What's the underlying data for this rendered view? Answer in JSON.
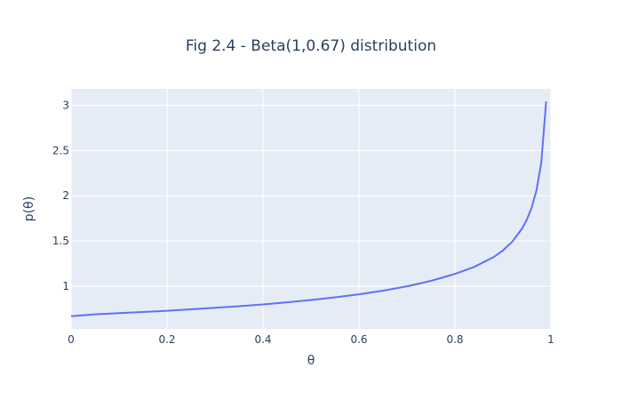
{
  "chart_data": {
    "type": "line",
    "title": "Fig 2.4 - Beta(1,0.67) distribution",
    "xlabel": "θ",
    "ylabel": "p(θ)",
    "xlim": [
      0,
      1
    ],
    "ylim": [
      0.53,
      3.18
    ],
    "xticks": [
      0,
      0.2,
      0.4,
      0.6,
      0.8,
      1
    ],
    "xtick_labels": [
      "0",
      "0.2",
      "0.4",
      "0.6",
      "0.8",
      "1"
    ],
    "yticks": [
      1,
      1.5,
      2,
      2.5,
      3
    ],
    "ytick_labels": [
      "1",
      "1.5",
      "2",
      "2.5",
      "3"
    ],
    "grid": true,
    "colors": {
      "plot_bg": "#e5ecf6",
      "line": "#636efa",
      "grid": "#ffffff",
      "text": "#2a3f5f"
    },
    "series": [
      {
        "x": [
          0,
          0.05,
          0.1,
          0.15,
          0.2,
          0.25,
          0.3,
          0.35,
          0.4,
          0.45,
          0.5,
          0.55,
          0.6,
          0.65,
          0.7,
          0.75,
          0.8,
          0.84,
          0.88,
          0.9,
          0.92,
          0.94,
          0.95,
          0.96,
          0.97,
          0.98,
          0.99
        ],
        "y": [
          0.67,
          0.691,
          0.704,
          0.717,
          0.73,
          0.746,
          0.763,
          0.78,
          0.8,
          0.823,
          0.849,
          0.878,
          0.912,
          0.952,
          1.0,
          1.06,
          1.137,
          1.214,
          1.321,
          1.396,
          1.496,
          1.639,
          1.738,
          1.871,
          2.062,
          2.37,
          3.04
        ]
      }
    ]
  }
}
